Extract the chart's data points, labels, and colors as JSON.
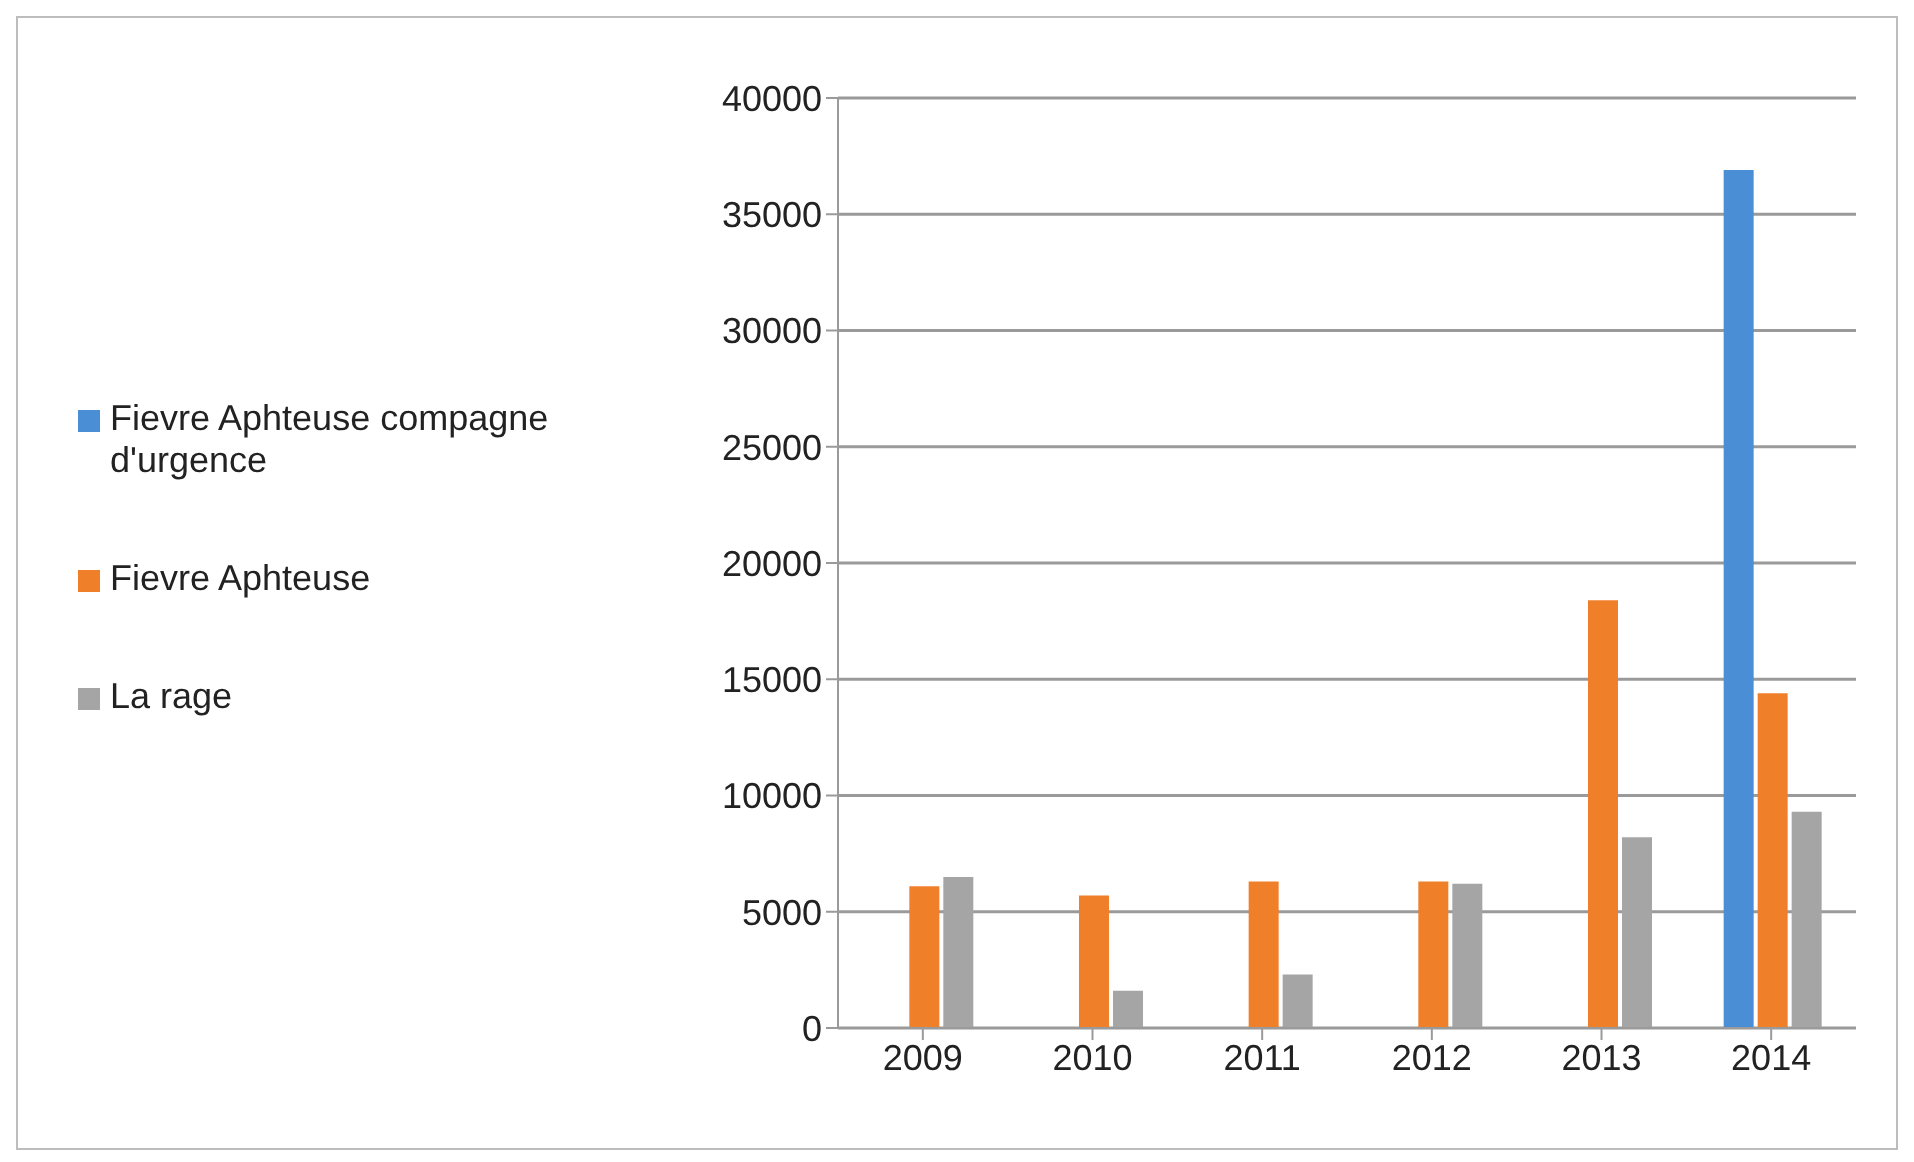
{
  "chart_data": {
    "type": "bar",
    "categories": [
      "2009",
      "2010",
      "2011",
      "2012",
      "2013",
      "2014"
    ],
    "series": [
      {
        "name": "Fievre Aphteuse compagne d'urgence",
        "color": "#4a8fd6",
        "values": [
          null,
          null,
          null,
          null,
          null,
          36900
        ]
      },
      {
        "name": "Fievre Aphteuse",
        "color": "#f07f2a",
        "values": [
          6100,
          5700,
          6300,
          6300,
          18400,
          14400
        ]
      },
      {
        "name": "La rage",
        "color": "#a5a5a5",
        "values": [
          6500,
          1600,
          2300,
          6200,
          8200,
          9300
        ]
      }
    ],
    "ylim": [
      0,
      40000
    ],
    "yticks": [
      0,
      5000,
      10000,
      15000,
      20000,
      25000,
      30000,
      35000,
      40000
    ],
    "grid": "y",
    "legend": "left"
  }
}
